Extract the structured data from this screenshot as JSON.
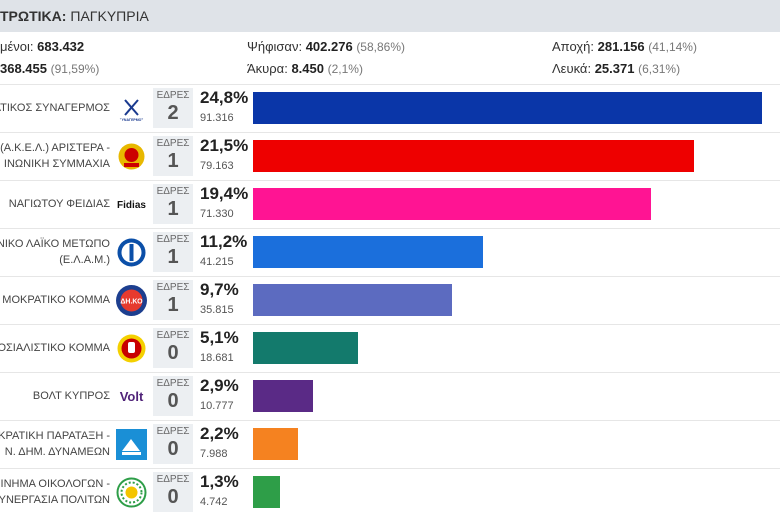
{
  "header": {
    "title_bold": "ΤΡΩΤΙΚΑ:",
    "title_rest": "ΠΑΓΚΥΠΡΙΑ"
  },
  "stats": {
    "registered_label": "μένοι:",
    "registered_value": "683.432",
    "voted_value": "368.455",
    "voted_pct": "(91,59%)",
    "cast_label": "Ψήφισαν:",
    "cast_value": "402.276",
    "cast_pct": "(58,86%)",
    "invalid_label": "Άκυρα:",
    "invalid_value": "8.450",
    "invalid_pct": "(2,1%)",
    "abstain_label": "Αποχή:",
    "abstain_value": "281.156",
    "abstain_pct": "(41,14%)",
    "blank_label": "Λευκά:",
    "blank_value": "25.371",
    "blank_pct": "(6,31%)"
  },
  "seats_label": "ΕΔΡΕΣ",
  "parties": [
    {
      "name_line1": "ΑΤΙΚΟΣ ΣΥΝΑΓΕΡΜΟΣ",
      "name_line2": "",
      "logo_text": "",
      "logo_icon": "disy-logo-icon",
      "seats": "2",
      "percent": "24,8%",
      "votes": "91.316",
      "share": 24.8,
      "color": "#0a36a8"
    },
    {
      "name_line1": "(Α.Κ.Ε.Λ.) ΑΡΙΣΤΕΡΑ -",
      "name_line2": "ΙΝΩΝΙΚΗ ΣΥΜΜΑΧΙΑ",
      "logo_text": "",
      "logo_icon": "akel-logo-icon",
      "seats": "1",
      "percent": "21,5%",
      "votes": "79.163",
      "share": 21.5,
      "color": "#ee0000"
    },
    {
      "name_line1": "ΝΑΓΙΩΤΟΥ ΦΕΙΔΙΑΣ",
      "name_line2": "",
      "logo_text": "Fidias",
      "logo_icon": "fidias-logo-icon",
      "seats": "1",
      "percent": "19,4%",
      "votes": "71.330",
      "share": 19.4,
      "color": "#ff1493"
    },
    {
      "name_line1": "ΝΙΚΟ ΛΑΪΚΟ ΜΕΤΩΠΟ",
      "name_line2": "(Ε.Λ.Α.Μ.)",
      "logo_text": "",
      "logo_icon": "elam-logo-icon",
      "seats": "1",
      "percent": "11,2%",
      "votes": "41.215",
      "share": 11.2,
      "color": "#1b6fdc"
    },
    {
      "name_line1": "ΜΟΚΡΑΤΙΚΟ ΚΟΜΜΑ",
      "name_line2": "",
      "logo_text": "ΔΗ.ΚΟ",
      "logo_icon": "diko-logo-icon",
      "seats": "1",
      "percent": "9,7%",
      "votes": "35.815",
      "share": 9.7,
      "color": "#5c6bc0"
    },
    {
      "name_line1": "ΟΣΙΑΛΙΣΤΙΚΟ ΚΟΜΜΑ",
      "name_line2": "",
      "logo_text": "",
      "logo_icon": "edek-logo-icon",
      "seats": "0",
      "percent": "5,1%",
      "votes": "18.681",
      "share": 5.1,
      "color": "#137a6c"
    },
    {
      "name_line1": "ΒΟΛΤ ΚΥΠΡΟΣ",
      "name_line2": "",
      "logo_text": "Volt",
      "logo_icon": "volt-logo-icon",
      "seats": "0",
      "percent": "2,9%",
      "votes": "10.777",
      "share": 2.9,
      "color": "#5a2a86"
    },
    {
      "name_line1": "ΚΡΑΤΙΚΗ ΠΑΡΑΤΑΞΗ -",
      "name_line2": "Ν. ΔΗΜ. ΔΥΝΑΜΕΩΝ",
      "logo_text": "",
      "logo_icon": "depa-logo-icon",
      "seats": "0",
      "percent": "2,2%",
      "votes": "7.988",
      "share": 2.2,
      "color": "#f58220"
    },
    {
      "name_line1": "ΙΝΗΜΑ ΟΙΚΟΛΟΓΩΝ -",
      "name_line2": "ΥΝΕΡΓΑΣΙΑ ΠΟΛΙΤΩΝ",
      "logo_text": "",
      "logo_icon": "greens-logo-icon",
      "seats": "0",
      "percent": "1,3%",
      "votes": "4.742",
      "share": 1.3,
      "color": "#2e9e48"
    }
  ]
}
